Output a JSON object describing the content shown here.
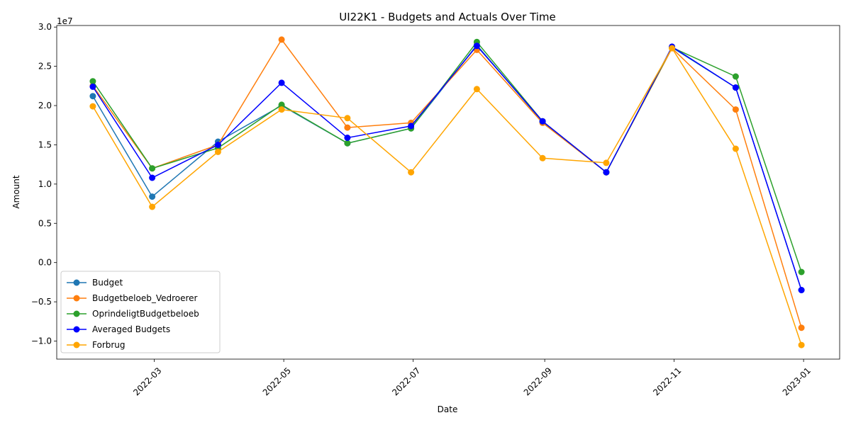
{
  "chart_data": {
    "type": "line",
    "title": "UI22K1 - Budgets and Actuals Over Time",
    "xlabel": "Date",
    "ylabel": "Amount",
    "y_exponent_label": "1e7",
    "x_tick_labels": [
      "2022-03",
      "2022-05",
      "2022-07",
      "2022-09",
      "2022-11",
      "2023-01"
    ],
    "x_tick_dates": [
      "2022-03-01",
      "2022-05-01",
      "2022-07-01",
      "2022-09-01",
      "2022-11-01",
      "2023-01-01"
    ],
    "y_tick_labels": [
      "−1.0",
      "−0.5",
      "0.0",
      "0.5",
      "1.0",
      "1.5",
      "2.0",
      "2.5",
      "3.0"
    ],
    "y_tick_values": [
      -1.0,
      -0.5,
      0.0,
      0.5,
      1.0,
      1.5,
      2.0,
      2.5,
      3.0
    ],
    "ylim": [
      -1.23,
      3.02
    ],
    "xlim": [
      "2022-01-14",
      "2023-01-18"
    ],
    "y_scale_note": "values in units of 1e7",
    "x": [
      "2022-01-31",
      "2022-02-28",
      "2022-03-31",
      "2022-04-30",
      "2022-05-31",
      "2022-06-30",
      "2022-07-31",
      "2022-08-31",
      "2022-09-30",
      "2022-10-31",
      "2022-11-30",
      "2022-12-31"
    ],
    "series": [
      {
        "name": "Budget",
        "color": "#1f77b4",
        "values": [
          2.12,
          0.84,
          1.54,
          2.0,
          1.52,
          1.71,
          2.77,
          1.79,
          1.15,
          2.74,
          2.23,
          -0.35
        ]
      },
      {
        "name": "Budgetbeloeb_Vedroerer",
        "color": "#ff7f0e",
        "values": [
          2.25,
          1.2,
          1.5,
          2.84,
          1.72,
          1.78,
          2.71,
          1.78,
          1.15,
          2.73,
          1.95,
          -0.83
        ]
      },
      {
        "name": "OprindeligtBudgetbeloeb",
        "color": "#2ca02c",
        "values": [
          2.31,
          1.2,
          1.46,
          2.01,
          1.52,
          1.71,
          2.81,
          1.8,
          1.15,
          2.74,
          2.37,
          -0.12
        ]
      },
      {
        "name": "Averaged Budgets",
        "color": "#0000ff",
        "values": [
          2.24,
          1.08,
          1.5,
          2.29,
          1.59,
          1.74,
          2.76,
          1.8,
          1.15,
          2.75,
          2.23,
          -0.35
        ]
      },
      {
        "name": "Forbrug",
        "color": "#ffa500",
        "values": [
          1.99,
          0.71,
          1.41,
          1.95,
          1.84,
          1.15,
          2.21,
          1.33,
          1.27,
          2.73,
          1.45,
          -1.05
        ]
      }
    ],
    "legend_position": "lower-left",
    "grid": false
  }
}
